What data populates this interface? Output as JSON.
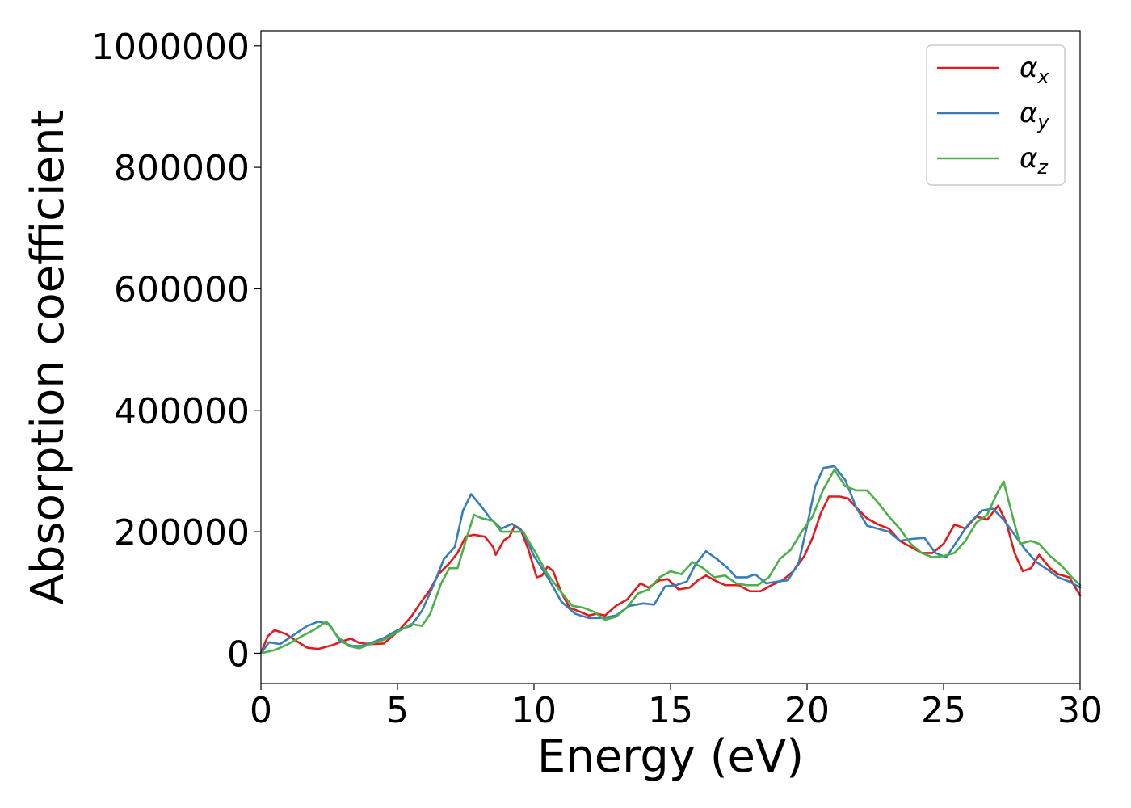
{
  "chart_data": {
    "type": "line",
    "title": "",
    "xlabel": "Energy (eV)",
    "ylabel": "Absorption coefficient",
    "xlim": [
      0,
      30
    ],
    "ylim": [
      -50000,
      1025000
    ],
    "xticks": [
      0,
      5,
      10,
      15,
      20,
      25,
      30
    ],
    "yticks": [
      0,
      200000,
      400000,
      600000,
      800000,
      1000000
    ],
    "xtick_labels": [
      "0",
      "5",
      "10",
      "15",
      "20",
      "25",
      "30"
    ],
    "ytick_labels": [
      "0",
      "200000",
      "400000",
      "600000",
      "800000",
      "1000000"
    ],
    "grid": false,
    "legend_position": "top-right",
    "series": [
      {
        "name": "α",
        "subscript": "x",
        "color": "#e41a1c",
        "points": [
          [
            0,
            0
          ],
          [
            0.25,
            28000
          ],
          [
            0.5,
            38000
          ],
          [
            0.9,
            32000
          ],
          [
            1.3,
            20000
          ],
          [
            1.7,
            9000
          ],
          [
            2.1,
            7000
          ],
          [
            2.6,
            13000
          ],
          [
            3.0,
            20000
          ],
          [
            3.3,
            24000
          ],
          [
            3.6,
            17000
          ],
          [
            4.0,
            15000
          ],
          [
            4.5,
            16000
          ],
          [
            5.0,
            35000
          ],
          [
            5.5,
            60000
          ],
          [
            5.8,
            80000
          ],
          [
            6.2,
            105000
          ],
          [
            6.5,
            130000
          ],
          [
            6.9,
            148000
          ],
          [
            7.2,
            165000
          ],
          [
            7.5,
            192000
          ],
          [
            7.8,
            195000
          ],
          [
            8.2,
            192000
          ],
          [
            8.5,
            175000
          ],
          [
            8.6,
            162000
          ],
          [
            8.9,
            186000
          ],
          [
            9.1,
            192000
          ],
          [
            9.3,
            210000
          ],
          [
            9.5,
            205000
          ],
          [
            9.8,
            170000
          ],
          [
            10.1,
            125000
          ],
          [
            10.3,
            128000
          ],
          [
            10.5,
            143000
          ],
          [
            10.7,
            135000
          ],
          [
            11.0,
            100000
          ],
          [
            11.3,
            75000
          ],
          [
            11.7,
            68000
          ],
          [
            12.0,
            62000
          ],
          [
            12.3,
            65000
          ],
          [
            12.6,
            62000
          ],
          [
            13.0,
            78000
          ],
          [
            13.4,
            88000
          ],
          [
            13.9,
            115000
          ],
          [
            14.2,
            108000
          ],
          [
            14.6,
            120000
          ],
          [
            14.9,
            122000
          ],
          [
            15.3,
            105000
          ],
          [
            15.7,
            108000
          ],
          [
            16.0,
            120000
          ],
          [
            16.3,
            128000
          ],
          [
            16.7,
            118000
          ],
          [
            17.0,
            112000
          ],
          [
            17.5,
            112000
          ],
          [
            17.9,
            102000
          ],
          [
            18.3,
            102000
          ],
          [
            18.7,
            112000
          ],
          [
            19.1,
            120000
          ],
          [
            19.5,
            135000
          ],
          [
            19.9,
            160000
          ],
          [
            20.2,
            190000
          ],
          [
            20.5,
            230000
          ],
          [
            20.8,
            258000
          ],
          [
            21.2,
            258000
          ],
          [
            21.5,
            255000
          ],
          [
            21.8,
            240000
          ],
          [
            22.2,
            222000
          ],
          [
            22.6,
            212000
          ],
          [
            23.0,
            205000
          ],
          [
            23.4,
            185000
          ],
          [
            23.8,
            175000
          ],
          [
            24.2,
            165000
          ],
          [
            24.6,
            165000
          ],
          [
            25.0,
            180000
          ],
          [
            25.4,
            212000
          ],
          [
            25.8,
            205000
          ],
          [
            26.2,
            225000
          ],
          [
            26.6,
            220000
          ],
          [
            27.0,
            243000
          ],
          [
            27.3,
            215000
          ],
          [
            27.6,
            165000
          ],
          [
            27.9,
            135000
          ],
          [
            28.2,
            140000
          ],
          [
            28.5,
            162000
          ],
          [
            28.9,
            140000
          ],
          [
            29.2,
            130000
          ],
          [
            29.6,
            125000
          ],
          [
            30.0,
            95000
          ]
        ]
      },
      {
        "name": "α",
        "subscript": "y",
        "color": "#377eb8",
        "points": [
          [
            0,
            0
          ],
          [
            0.3,
            18000
          ],
          [
            0.7,
            15000
          ],
          [
            1.2,
            30000
          ],
          [
            1.7,
            45000
          ],
          [
            2.1,
            52000
          ],
          [
            2.5,
            48000
          ],
          [
            2.9,
            20000
          ],
          [
            3.3,
            12000
          ],
          [
            3.7,
            12000
          ],
          [
            4.1,
            18000
          ],
          [
            4.5,
            25000
          ],
          [
            5.0,
            38000
          ],
          [
            5.5,
            45000
          ],
          [
            5.9,
            70000
          ],
          [
            6.3,
            110000
          ],
          [
            6.7,
            155000
          ],
          [
            7.1,
            175000
          ],
          [
            7.4,
            235000
          ],
          [
            7.7,
            262000
          ],
          [
            8.1,
            240000
          ],
          [
            8.4,
            222000
          ],
          [
            8.8,
            205000
          ],
          [
            9.2,
            213000
          ],
          [
            9.6,
            200000
          ],
          [
            10.0,
            160000
          ],
          [
            10.5,
            125000
          ],
          [
            11.0,
            85000
          ],
          [
            11.5,
            65000
          ],
          [
            12.0,
            58000
          ],
          [
            12.5,
            58000
          ],
          [
            13.0,
            62000
          ],
          [
            13.5,
            78000
          ],
          [
            14.0,
            82000
          ],
          [
            14.4,
            80000
          ],
          [
            14.8,
            110000
          ],
          [
            15.2,
            112000
          ],
          [
            15.6,
            118000
          ],
          [
            15.9,
            145000
          ],
          [
            16.3,
            168000
          ],
          [
            16.7,
            155000
          ],
          [
            17.1,
            140000
          ],
          [
            17.4,
            125000
          ],
          [
            17.8,
            125000
          ],
          [
            18.1,
            130000
          ],
          [
            18.5,
            115000
          ],
          [
            18.9,
            118000
          ],
          [
            19.3,
            120000
          ],
          [
            19.7,
            150000
          ],
          [
            20.0,
            210000
          ],
          [
            20.3,
            275000
          ],
          [
            20.6,
            305000
          ],
          [
            21.0,
            308000
          ],
          [
            21.4,
            285000
          ],
          [
            21.8,
            240000
          ],
          [
            22.2,
            210000
          ],
          [
            22.6,
            205000
          ],
          [
            23.0,
            200000
          ],
          [
            23.4,
            185000
          ],
          [
            23.8,
            188000
          ],
          [
            24.3,
            190000
          ],
          [
            24.7,
            165000
          ],
          [
            25.1,
            158000
          ],
          [
            25.5,
            185000
          ],
          [
            25.9,
            212000
          ],
          [
            26.4,
            235000
          ],
          [
            26.8,
            238000
          ],
          [
            27.2,
            220000
          ],
          [
            27.6,
            195000
          ],
          [
            28.0,
            170000
          ],
          [
            28.4,
            150000
          ],
          [
            28.8,
            138000
          ],
          [
            29.2,
            125000
          ],
          [
            29.6,
            118000
          ],
          [
            30.0,
            108000
          ]
        ]
      },
      {
        "name": "α",
        "subscript": "z",
        "color": "#4daf4a",
        "points": [
          [
            0,
            0
          ],
          [
            0.5,
            5000
          ],
          [
            1.0,
            15000
          ],
          [
            1.5,
            28000
          ],
          [
            2.0,
            40000
          ],
          [
            2.4,
            52000
          ],
          [
            2.8,
            28000
          ],
          [
            3.2,
            12000
          ],
          [
            3.6,
            8000
          ],
          [
            4.0,
            15000
          ],
          [
            4.5,
            22000
          ],
          [
            5.0,
            35000
          ],
          [
            5.5,
            48000
          ],
          [
            5.9,
            45000
          ],
          [
            6.2,
            65000
          ],
          [
            6.6,
            115000
          ],
          [
            6.9,
            140000
          ],
          [
            7.2,
            140000
          ],
          [
            7.5,
            185000
          ],
          [
            7.8,
            228000
          ],
          [
            8.1,
            222000
          ],
          [
            8.5,
            218000
          ],
          [
            8.8,
            200000
          ],
          [
            9.2,
            200000
          ],
          [
            9.6,
            200000
          ],
          [
            10.0,
            170000
          ],
          [
            10.5,
            130000
          ],
          [
            11.0,
            100000
          ],
          [
            11.4,
            78000
          ],
          [
            11.8,
            75000
          ],
          [
            12.2,
            68000
          ],
          [
            12.6,
            55000
          ],
          [
            13.0,
            60000
          ],
          [
            13.4,
            75000
          ],
          [
            13.8,
            98000
          ],
          [
            14.2,
            105000
          ],
          [
            14.6,
            125000
          ],
          [
            15.0,
            135000
          ],
          [
            15.4,
            130000
          ],
          [
            15.8,
            150000
          ],
          [
            16.2,
            140000
          ],
          [
            16.6,
            125000
          ],
          [
            17.0,
            128000
          ],
          [
            17.4,
            115000
          ],
          [
            17.8,
            112000
          ],
          [
            18.2,
            112000
          ],
          [
            18.6,
            125000
          ],
          [
            19.0,
            155000
          ],
          [
            19.4,
            170000
          ],
          [
            19.8,
            200000
          ],
          [
            20.2,
            225000
          ],
          [
            20.6,
            270000
          ],
          [
            21.0,
            302000
          ],
          [
            21.4,
            275000
          ],
          [
            21.8,
            268000
          ],
          [
            22.2,
            268000
          ],
          [
            22.6,
            248000
          ],
          [
            23.0,
            225000
          ],
          [
            23.4,
            205000
          ],
          [
            23.8,
            180000
          ],
          [
            24.2,
            165000
          ],
          [
            24.6,
            158000
          ],
          [
            25.0,
            160000
          ],
          [
            25.4,
            165000
          ],
          [
            25.8,
            185000
          ],
          [
            26.2,
            215000
          ],
          [
            26.6,
            228000
          ],
          [
            26.9,
            258000
          ],
          [
            27.2,
            283000
          ],
          [
            27.5,
            230000
          ],
          [
            27.8,
            180000
          ],
          [
            28.2,
            185000
          ],
          [
            28.5,
            180000
          ],
          [
            28.9,
            160000
          ],
          [
            29.3,
            145000
          ],
          [
            29.7,
            125000
          ],
          [
            30.0,
            112000
          ]
        ]
      }
    ]
  }
}
